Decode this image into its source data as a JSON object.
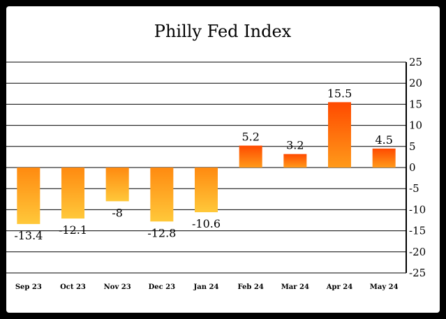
{
  "chart_data": {
    "type": "bar",
    "title": "Philly Fed Index",
    "xlabel": "",
    "ylabel": "",
    "categories": [
      "Sep 23",
      "Oct 23",
      "Nov 23",
      "Dec 23",
      "Jan 24",
      "Feb 24",
      "Mar 24",
      "Apr 24",
      "May 24"
    ],
    "values": [
      -13.4,
      -12.1,
      -8,
      -12.8,
      -10.6,
      5.2,
      3.2,
      15.5,
      4.5
    ],
    "data_labels": [
      "-13.4",
      "-12.1",
      "-8",
      "-12.8",
      "-10.6",
      "5.2",
      "3.2",
      "15.5",
      "4.5"
    ],
    "ylim": [
      -25,
      25
    ],
    "yticks": [
      25,
      20,
      15,
      10,
      5,
      0,
      -5,
      -10,
      -15,
      -20,
      -25
    ],
    "ytick_labels": [
      "25",
      "20",
      "15",
      "10",
      "5",
      "0",
      "-5",
      "-10",
      "-15",
      "-20",
      "-25"
    ],
    "y_axis_position": "right",
    "grid": true,
    "legend": "none",
    "colors": {
      "positive_top": "#ff4a00",
      "positive_bottom": "#ff9a1a",
      "negative_top": "#ff8a10",
      "negative_bottom": "#ffc83a",
      "grid": "#000000",
      "background": "#ffffff",
      "frame": "#000000"
    }
  }
}
